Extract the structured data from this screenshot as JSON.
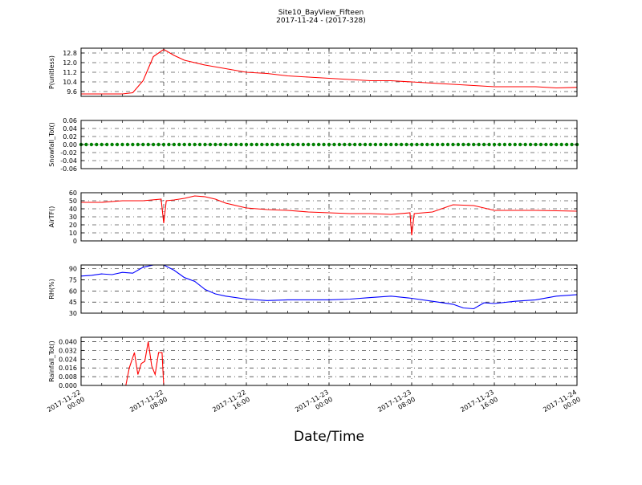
{
  "figure": {
    "title_line1": "Site10_BayView_Fifteen",
    "title_line2": "2017-11-24 - (2017-328)",
    "xlabel": "Date/Time"
  },
  "chart_data": [
    {
      "type": "line",
      "ylabel": "P(unitless)",
      "yticks": [
        "9.6",
        "10.4",
        "11.2",
        "12.0",
        "12.8"
      ],
      "ylim": [
        9.2,
        13.2
      ],
      "color": "#ff0000",
      "grid": true,
      "x": [
        "2017-11-22 00:00",
        "2017-11-22 02:00",
        "2017-11-22 04:00",
        "2017-11-22 05:00",
        "2017-11-22 06:00",
        "2017-11-22 07:00",
        "2017-11-22 08:00",
        "2017-11-22 09:00",
        "2017-11-22 10:00",
        "2017-11-22 12:00",
        "2017-11-22 14:00",
        "2017-11-22 16:00",
        "2017-11-22 18:00",
        "2017-11-22 20:00",
        "2017-11-22 22:00",
        "2017-11-23 00:00",
        "2017-11-23 02:00",
        "2017-11-23 04:00",
        "2017-11-23 06:00",
        "2017-11-23 08:00",
        "2017-11-23 10:00",
        "2017-11-23 12:00",
        "2017-11-23 14:00",
        "2017-11-23 16:00",
        "2017-11-23 18:00",
        "2017-11-23 20:00",
        "2017-11-23 22:00",
        "2017-11-24 00:00"
      ],
      "values": [
        9.4,
        9.4,
        9.4,
        9.5,
        10.5,
        12.5,
        13.1,
        12.6,
        12.2,
        11.8,
        11.5,
        11.2,
        11.1,
        10.9,
        10.8,
        10.7,
        10.6,
        10.5,
        10.5,
        10.4,
        10.3,
        10.2,
        10.1,
        10.0,
        10.0,
        10.0,
        9.9,
        9.95
      ]
    },
    {
      "type": "scatter",
      "ylabel": "Snowfall_Tot()",
      "yticks": [
        "-0.06",
        "-0.04",
        "-0.02",
        "0.00",
        "0.02",
        "0.04",
        "0.06"
      ],
      "ylim": [
        -0.06,
        0.06
      ],
      "color": "#008000",
      "grid": true,
      "x_range": [
        "2017-11-22 00:00",
        "2017-11-24 00:00"
      ],
      "constant_value": 0.0
    },
    {
      "type": "line",
      "ylabel": "AirTF()",
      "yticks": [
        "0",
        "10",
        "20",
        "30",
        "40",
        "50",
        "60"
      ],
      "ylim": [
        0,
        60
      ],
      "color": "#ff0000",
      "grid": true,
      "x": [
        "2017-11-22 00:00",
        "2017-11-22 02:00",
        "2017-11-22 04:00",
        "2017-11-22 06:00",
        "2017-11-22 07:45",
        "2017-11-22 08:00",
        "2017-11-22 08:15",
        "2017-11-22 09:00",
        "2017-11-22 10:00",
        "2017-11-22 11:00",
        "2017-11-22 12:00",
        "2017-11-22 13:00",
        "2017-11-22 14:00",
        "2017-11-22 16:00",
        "2017-11-22 18:00",
        "2017-11-22 20:00",
        "2017-11-22 22:00",
        "2017-11-23 00:00",
        "2017-11-23 02:00",
        "2017-11-23 04:00",
        "2017-11-23 06:00",
        "2017-11-23 07:50",
        "2017-11-23 08:00",
        "2017-11-23 08:15",
        "2017-11-23 10:00",
        "2017-11-23 12:00",
        "2017-11-23 14:00",
        "2017-11-23 16:00",
        "2017-11-23 18:00",
        "2017-11-23 20:00",
        "2017-11-24 00:00"
      ],
      "values": [
        48,
        48,
        50,
        50,
        52,
        22,
        50,
        51,
        53,
        56,
        55,
        52,
        47,
        41,
        39,
        38,
        36,
        35,
        34,
        34,
        33,
        35,
        7,
        34,
        36,
        45,
        44,
        38,
        38,
        38,
        37
      ]
    },
    {
      "type": "line",
      "ylabel": "RH(%)",
      "yticks": [
        "30",
        "45",
        "60",
        "75",
        "90"
      ],
      "ylim": [
        30,
        95
      ],
      "color": "#0000ff",
      "grid": true,
      "x": [
        "2017-11-22 00:00",
        "2017-11-22 01:00",
        "2017-11-22 02:00",
        "2017-11-22 03:00",
        "2017-11-22 04:00",
        "2017-11-22 05:00",
        "2017-11-22 06:00",
        "2017-11-22 07:00",
        "2017-11-22 08:00",
        "2017-11-22 09:00",
        "2017-11-22 10:00",
        "2017-11-22 11:00",
        "2017-11-22 12:00",
        "2017-11-22 13:00",
        "2017-11-22 14:00",
        "2017-11-22 16:00",
        "2017-11-22 18:00",
        "2017-11-22 20:00",
        "2017-11-22 22:00",
        "2017-11-23 00:00",
        "2017-11-23 02:00",
        "2017-11-23 04:00",
        "2017-11-23 06:00",
        "2017-11-23 08:00",
        "2017-11-23 10:00",
        "2017-11-23 12:00",
        "2017-11-23 13:00",
        "2017-11-23 14:00",
        "2017-11-23 15:00",
        "2017-11-23 16:00",
        "2017-11-23 18:00",
        "2017-11-23 20:00",
        "2017-11-23 22:00",
        "2017-11-24 00:00"
      ],
      "values": [
        80,
        81,
        83,
        82,
        85,
        84,
        92,
        95,
        95,
        88,
        78,
        73,
        62,
        56,
        53,
        49,
        47,
        48,
        48,
        48,
        49,
        51,
        53,
        50,
        46,
        42,
        37,
        36,
        44,
        43,
        46,
        48,
        53,
        55
      ]
    },
    {
      "type": "line",
      "ylabel": "Rainfall_Tot()",
      "yticks": [
        "0.000",
        "0.008",
        "0.016",
        "0.024",
        "0.032",
        "0.040"
      ],
      "ylim": [
        0,
        0.044
      ],
      "color": "#ff0000",
      "grid": true,
      "x": [
        "2017-11-22 00:00",
        "2017-11-22 04:20",
        "2017-11-22 04:40",
        "2017-11-22 05:10",
        "2017-11-22 05:30",
        "2017-11-22 05:50",
        "2017-11-22 06:10",
        "2017-11-22 06:30",
        "2017-11-22 06:50",
        "2017-11-22 07:10",
        "2017-11-22 07:30",
        "2017-11-22 07:50",
        "2017-11-22 08:00",
        "2017-11-22 08:15",
        "2017-11-24 00:00"
      ],
      "values": [
        0.0,
        0.0,
        0.016,
        0.03,
        0.01,
        0.02,
        0.022,
        0.04,
        0.018,
        0.01,
        0.03,
        0.03,
        0.0,
        0.0,
        0.0
      ]
    }
  ],
  "x_axis": {
    "start": "2017-11-22 00:00",
    "end": "2017-11-24 00:00",
    "tick_labels": [
      [
        "2017-11-22",
        "00:00"
      ],
      [
        "2017-11-22",
        "08:00"
      ],
      [
        "2017-11-22",
        "16:00"
      ],
      [
        "2017-11-23",
        "00:00"
      ],
      [
        "2017-11-23",
        "08:00"
      ],
      [
        "2017-11-23",
        "16:00"
      ],
      [
        "2017-11-24",
        "00:00"
      ]
    ]
  }
}
